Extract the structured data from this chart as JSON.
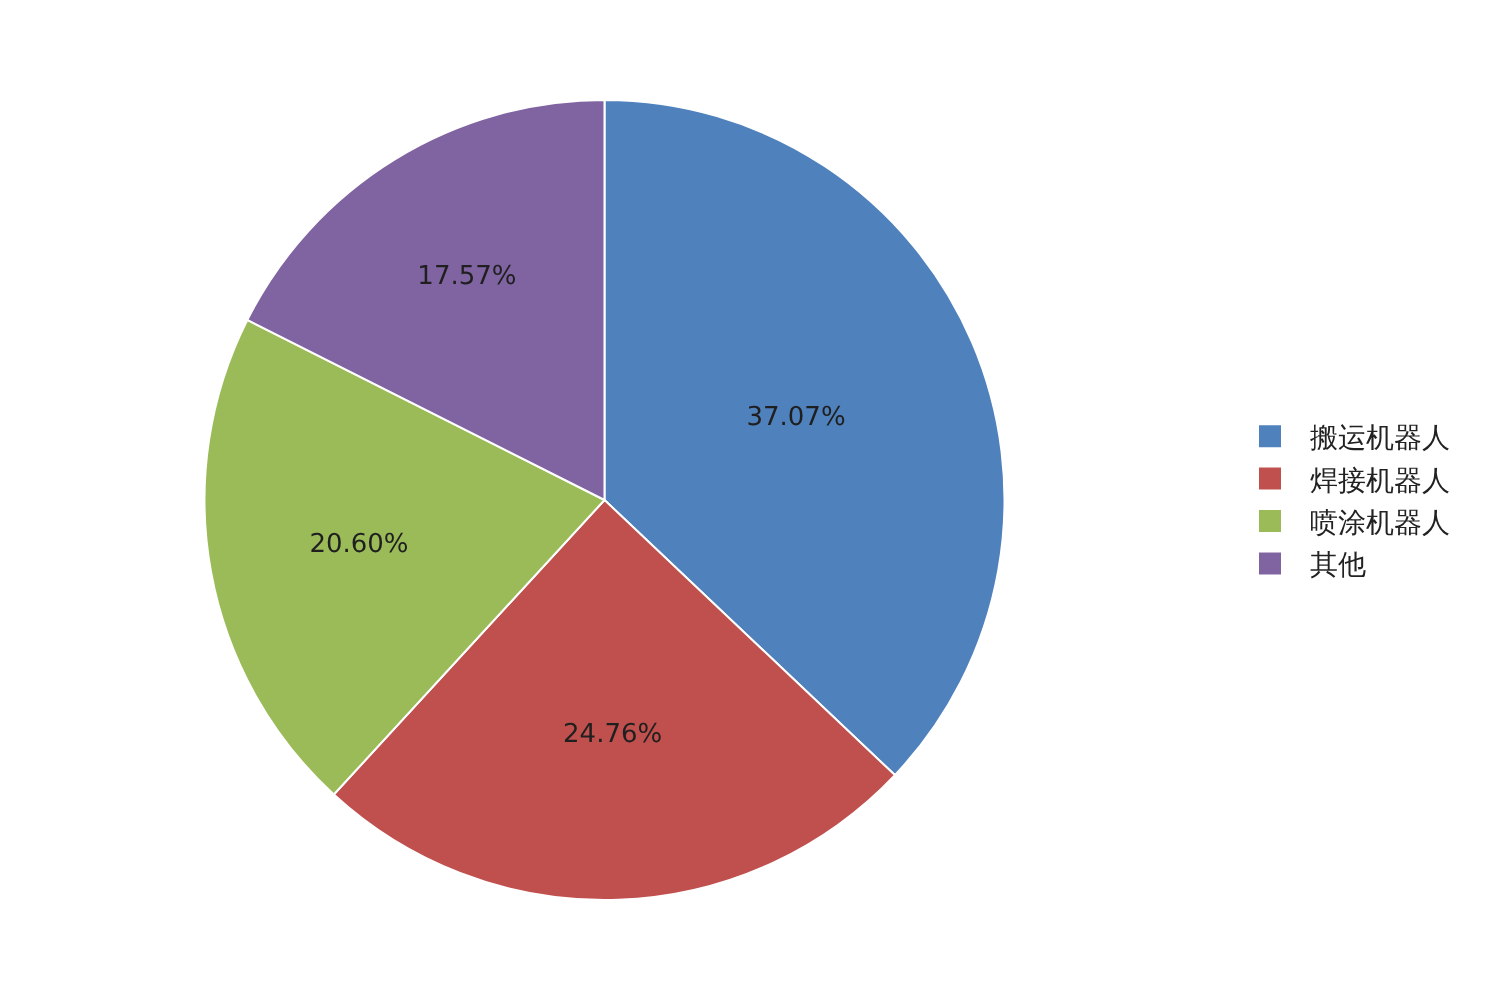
{
  "chart_data": {
    "type": "pie",
    "categories": [
      "搬运机器人",
      "焊接机器人",
      "喷涂机器人",
      "其他"
    ],
    "values": [
      37.07,
      24.76,
      20.6,
      17.57
    ],
    "colors": [
      "#4f81bd",
      "#c0504d",
      "#9bbb59",
      "#8064a2"
    ],
    "value_labels": [
      "37.07%",
      "24.76%",
      "20.60%",
      "17.57%"
    ],
    "legend": "right"
  }
}
